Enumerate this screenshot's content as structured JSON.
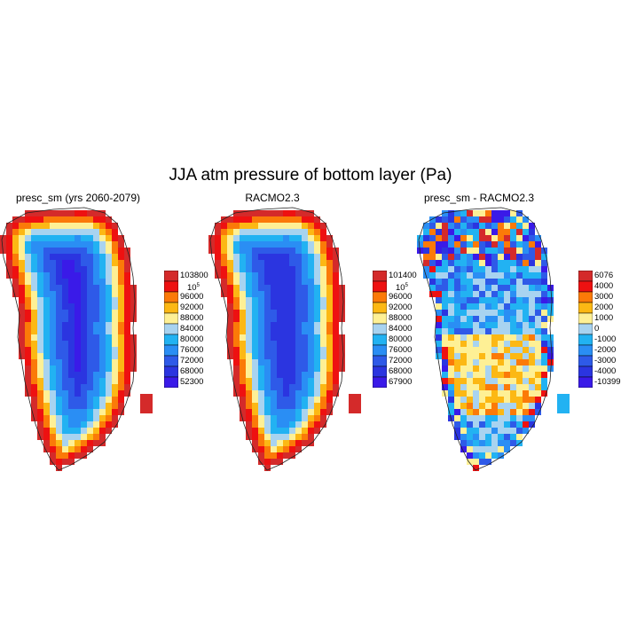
{
  "title": "JJA atm pressure of bottom layer (Pa)",
  "panels": [
    {
      "id": "presc",
      "title": "presc_sm (yrs 2060-2079)",
      "colorbar_labels": [
        "103800",
        "10^5",
        "96000",
        "92000",
        "88000",
        "84000",
        "80000",
        "76000",
        "72000",
        "68000",
        "52300"
      ],
      "palette": [
        "#d42a2a",
        "#ee1111",
        "#fb7a08",
        "#fcb814",
        "#fef095",
        "#a8d3f0",
        "#22b2f2",
        "#2a8ef4",
        "#2e5ae8",
        "#2b35e0",
        "#3a1ae8"
      ]
    },
    {
      "id": "racmo",
      "title": "RACMO2.3",
      "colorbar_labels": [
        "101400",
        "10^5",
        "96000",
        "92000",
        "88000",
        "84000",
        "80000",
        "76000",
        "72000",
        "68000",
        "67900"
      ],
      "palette": [
        "#d42a2a",
        "#ee1111",
        "#fb7a08",
        "#fcb814",
        "#fef095",
        "#a8d3f0",
        "#22b2f2",
        "#2a8ef4",
        "#2e5ae8",
        "#2b35e0",
        "#3a1ae8"
      ]
    },
    {
      "id": "diff",
      "title": "presc_sm - RACMO2.3",
      "colorbar_labels": [
        "6076",
        "4000",
        "3000",
        "2000",
        "1000",
        "0",
        "-1000",
        "-2000",
        "-3000",
        "-4000",
        "-10399"
      ],
      "palette": [
        "#d42a2a",
        "#ee1111",
        "#fb7a08",
        "#fcb814",
        "#fef095",
        "#a8d3f0",
        "#22b2f2",
        "#2a8ef4",
        "#2e5ae8",
        "#2b35e0",
        "#3a1ae8"
      ]
    }
  ]
}
